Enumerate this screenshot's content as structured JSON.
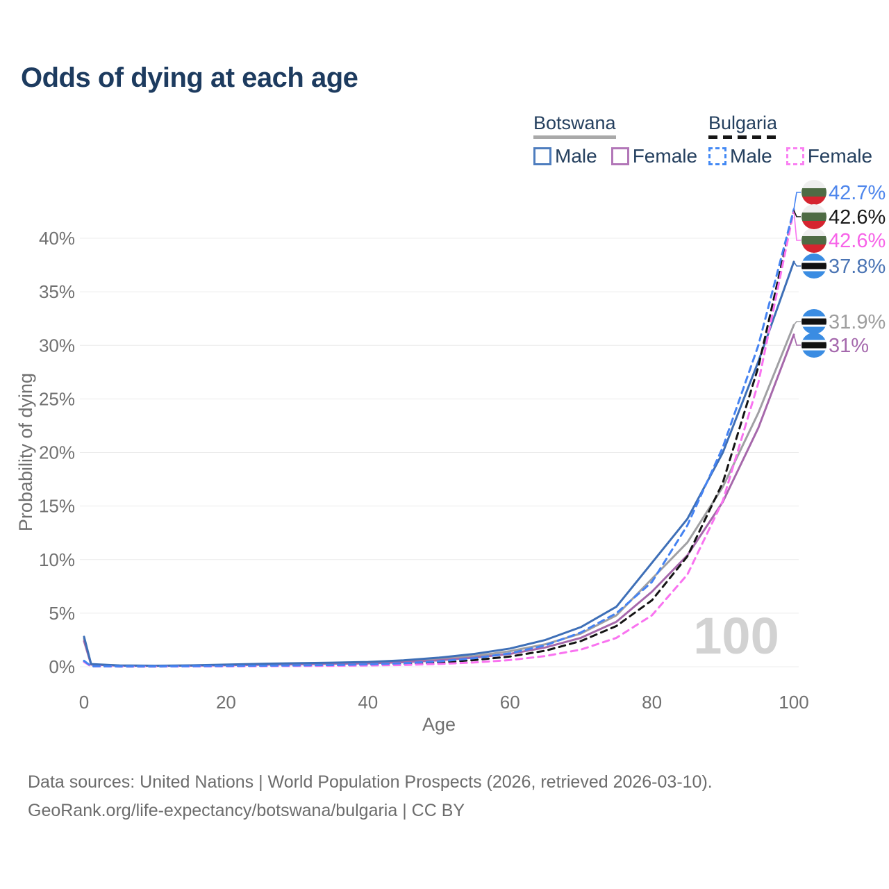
{
  "title": "Odds of dying at each age",
  "legend": {
    "groups": [
      {
        "label": "Botswana",
        "underline_style": "solid",
        "underline_color": "#a9a9a9",
        "items": [
          {
            "label": "Male",
            "color": "#4e7dbe",
            "dashed": false
          },
          {
            "label": "Female",
            "color": "#b277b8",
            "dashed": false
          }
        ]
      },
      {
        "label": "Bulgaria",
        "underline_style": "dashed",
        "underline_color": "#161616",
        "items": [
          {
            "label": "Male",
            "color": "#4389f4",
            "dashed": true
          },
          {
            "label": "Female",
            "color": "#fa80f2",
            "dashed": true
          }
        ]
      }
    ]
  },
  "chart_data": {
    "type": "line",
    "title": "Odds of dying at each age",
    "xlabel": "Age",
    "ylabel": "Probability of dying",
    "x_ticks": [
      0,
      20,
      40,
      60,
      80,
      100
    ],
    "y_ticks": [
      "0%",
      "5%",
      "10%",
      "15%",
      "20%",
      "25%",
      "30%",
      "35%",
      "40%"
    ],
    "xlim": [
      0,
      100
    ],
    "ylim_pct": [
      0,
      44.5
    ],
    "grid": true,
    "legend_position": "top-right",
    "watermark": "100",
    "ages": [
      0,
      1,
      5,
      10,
      15,
      20,
      25,
      30,
      35,
      40,
      45,
      50,
      55,
      60,
      65,
      70,
      75,
      80,
      85,
      90,
      95,
      100
    ],
    "series": [
      {
        "id": "botswana-male",
        "country": "Botswana",
        "sex": "Male",
        "color": "#3e6fb7",
        "dashed": false,
        "flag": "botswana",
        "end_label": "37.8%",
        "label_color": "#4a74b4",
        "values": [
          2.8,
          0.25,
          0.12,
          0.1,
          0.13,
          0.2,
          0.28,
          0.33,
          0.38,
          0.45,
          0.6,
          0.85,
          1.2,
          1.7,
          2.5,
          3.7,
          5.6,
          9.7,
          13.8,
          20.0,
          28.5,
          37.8
        ]
      },
      {
        "id": "botswana-female",
        "country": "Botswana",
        "sex": "Female",
        "color": "#a668ab",
        "dashed": false,
        "flag": "botswana",
        "end_label": "31%",
        "label_color": "#a569ad",
        "values": [
          2.4,
          0.2,
          0.1,
          0.08,
          0.1,
          0.14,
          0.19,
          0.23,
          0.27,
          0.32,
          0.42,
          0.6,
          0.85,
          1.2,
          1.8,
          2.7,
          4.2,
          7.0,
          10.4,
          15.4,
          22.3,
          31.0
        ]
      },
      {
        "id": "botswana-all",
        "country": "Botswana",
        "sex": "All",
        "color": "#a0a0a3",
        "dashed": false,
        "flag": "botswana",
        "end_label": "31.9%",
        "label_color": "#9e9e9e",
        "values": [
          2.6,
          0.22,
          0.11,
          0.09,
          0.11,
          0.17,
          0.23,
          0.28,
          0.32,
          0.38,
          0.5,
          0.72,
          1.0,
          1.45,
          2.1,
          3.1,
          4.8,
          8.2,
          11.6,
          16.8,
          23.7,
          31.9
        ]
      },
      {
        "id": "bulgaria-male",
        "country": "Bulgaria",
        "sex": "Male",
        "color": "#4583f2",
        "dashed": true,
        "flag": "bulgaria",
        "end_label": "42.7%",
        "label_color": "#4e86ec",
        "values": [
          0.55,
          0.05,
          0.03,
          0.03,
          0.05,
          0.08,
          0.1,
          0.12,
          0.16,
          0.22,
          0.33,
          0.5,
          0.8,
          1.25,
          2.0,
          3.2,
          5.0,
          7.9,
          13.2,
          20.5,
          30.0,
          42.7
        ]
      },
      {
        "id": "bulgaria-female",
        "country": "Bulgaria",
        "sex": "Female",
        "color": "#f973f0",
        "dashed": true,
        "flag": "bulgaria",
        "end_label": "42.6%",
        "label_color": "#f763e8",
        "values": [
          0.45,
          0.04,
          0.02,
          0.02,
          0.03,
          0.04,
          0.05,
          0.07,
          0.09,
          0.12,
          0.17,
          0.26,
          0.4,
          0.62,
          1.0,
          1.6,
          2.7,
          4.8,
          8.6,
          15.5,
          26.5,
          42.6
        ]
      },
      {
        "id": "bulgaria-all",
        "country": "Bulgaria",
        "sex": "All",
        "color": "#141414",
        "dashed": true,
        "flag": "bulgaria",
        "end_label": "42.6%",
        "label_color": "#1a1a1a",
        "values": [
          0.5,
          0.045,
          0.025,
          0.025,
          0.04,
          0.06,
          0.08,
          0.1,
          0.13,
          0.18,
          0.26,
          0.4,
          0.62,
          0.95,
          1.5,
          2.4,
          3.8,
          6.2,
          10.3,
          17.2,
          28.0,
          42.6
        ]
      }
    ],
    "flag_colors": {
      "bulgaria": {
        "top": "#efefef",
        "middle": "#4e6b44",
        "bottom": "#d5242f"
      },
      "botswana": {
        "field": "#3a8ce2",
        "band": "#111111",
        "fimbriation": "#ffffff"
      }
    }
  },
  "footer": {
    "line1": "Data sources: United Nations | World Population Prospects (2026, retrieved 2026-03-10).",
    "line2": "GeoRank.org/life-expectancy/botswana/bulgaria | CC BY"
  }
}
